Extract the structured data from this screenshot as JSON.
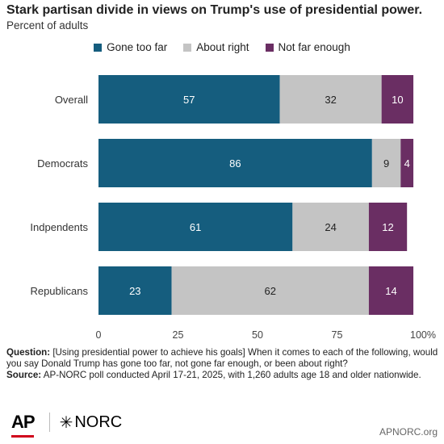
{
  "title": "Stark partisan divide in views on Trump's use of presidential power.",
  "subtitle": "Percent of adults",
  "legend": [
    {
      "label": "Gone too far",
      "color": "#155d7e"
    },
    {
      "label": "About right",
      "color": "#c4c4c4"
    },
    {
      "label": "Not far enough",
      "color": "#6a2e63"
    }
  ],
  "chart_data": {
    "type": "bar",
    "orientation": "horizontal",
    "stacked": true,
    "categories": [
      "Overall",
      "Democrats",
      "Indpendents",
      "Republicans"
    ],
    "series": [
      {
        "name": "Gone too far",
        "color": "#155d7e",
        "label_color": "#ffffff",
        "values": [
          57,
          86,
          61,
          23
        ]
      },
      {
        "name": "About right",
        "color": "#c4c4c4",
        "label_color": "#222222",
        "values": [
          32,
          9,
          24,
          62
        ]
      },
      {
        "name": "Not far enough",
        "color": "#6a2e63",
        "label_color": "#ffffff",
        "values": [
          10,
          4,
          12,
          14
        ]
      }
    ],
    "xlim": [
      0,
      100
    ],
    "xticks": [
      "0",
      "25",
      "50",
      "75",
      "100%"
    ],
    "grid": false,
    "legend_position": "top"
  },
  "footnote": {
    "question_label": "Question:",
    "question_text": " [Using presidential power to achieve his goals] When it comes to each of the following, would you say Donald Trump has gone too far, not gone far enough, or been about right?",
    "source_label": "Source:",
    "source_text": " AP-NORC poll conducted April 17-21, 2025, with 1,260 adults age 18 and older nationwide."
  },
  "logos": {
    "ap": "AP",
    "norc": "NORC"
  },
  "site": "APNORC.org"
}
